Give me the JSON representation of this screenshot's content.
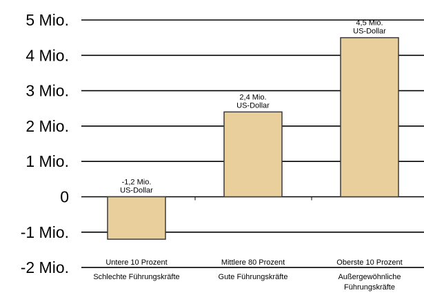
{
  "chart_data": {
    "type": "bar",
    "title": "",
    "xlabel": "",
    "ylabel": "",
    "ylim": [
      -2,
      5
    ],
    "grid": "horizontal",
    "yticks": [
      {
        "value": 5,
        "label": "5 Mio."
      },
      {
        "value": 4,
        "label": "4 Mio."
      },
      {
        "value": 3,
        "label": "3 Mio."
      },
      {
        "value": 2,
        "label": "2 Mio."
      },
      {
        "value": 1,
        "label": "1 Mio."
      },
      {
        "value": 0,
        "label": "0"
      },
      {
        "value": -1,
        "label": "-1 Mio."
      },
      {
        "value": -2,
        "label": "-2 Mio."
      }
    ],
    "categories": [
      [
        "Untere 10 Prozent",
        "Schlechte Führungskräfte"
      ],
      [
        "Mittlere 80 Prozent",
        "Gute Führungskräfte"
      ],
      [
        "Oberste 10 Prozent",
        "Außergewöhnliche",
        "Führungskräfte"
      ]
    ],
    "values": [
      -1.2,
      2.4,
      4.5
    ],
    "data_labels": [
      [
        "-1,2 Mio.",
        "US-Dollar"
      ],
      [
        "2,4 Mio.",
        "US-Dollar"
      ],
      [
        "4,5 Mio.",
        "US-Dollar"
      ]
    ],
    "colors": {
      "bar_fill": "#e8cf9c",
      "bar_stroke": "#3a3a3a",
      "grid": "#000000"
    }
  }
}
